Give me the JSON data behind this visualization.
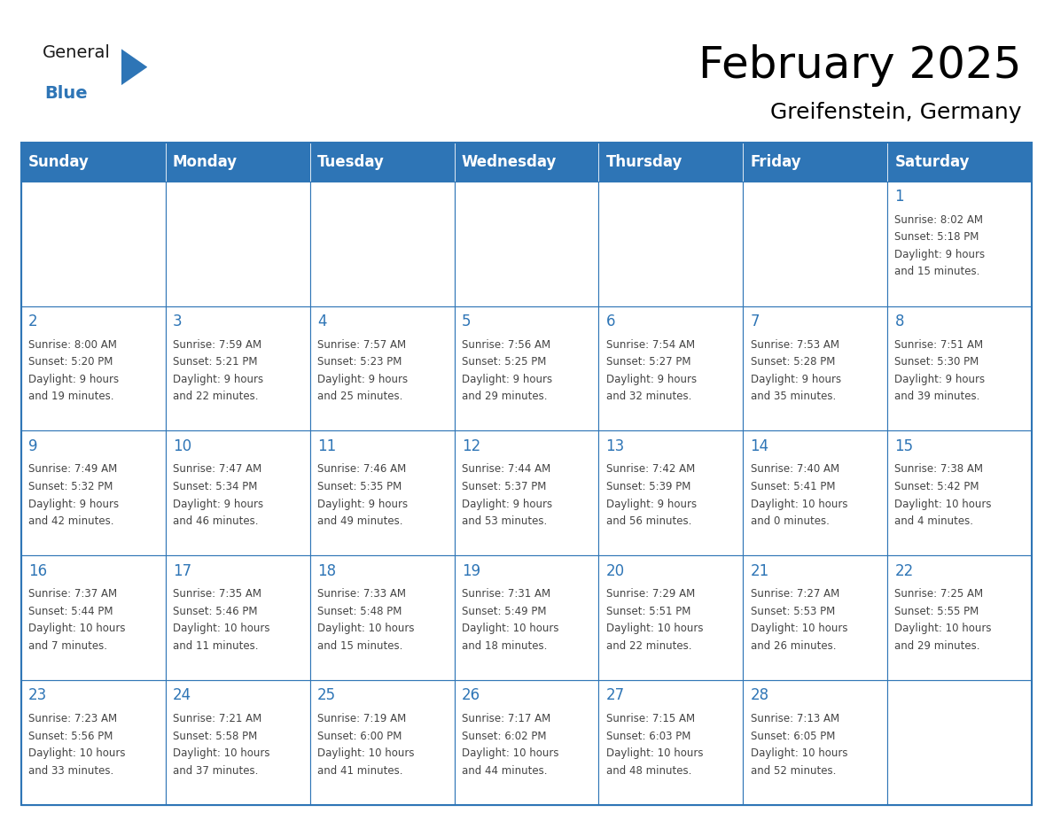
{
  "title": "February 2025",
  "subtitle": "Greifenstein, Germany",
  "header_color": "#2E75B6",
  "header_text_color": "#FFFFFF",
  "border_color": "#2E75B6",
  "text_color": "#444444",
  "day_number_color": "#2E75B6",
  "day_names": [
    "Sunday",
    "Monday",
    "Tuesday",
    "Wednesday",
    "Thursday",
    "Friday",
    "Saturday"
  ],
  "days_data": [
    {
      "day": 1,
      "col": 6,
      "row": 0,
      "sunrise": "8:02 AM",
      "sunset": "5:18 PM",
      "daylight_l1": "9 hours",
      "daylight_l2": "and 15 minutes."
    },
    {
      "day": 2,
      "col": 0,
      "row": 1,
      "sunrise": "8:00 AM",
      "sunset": "5:20 PM",
      "daylight_l1": "9 hours",
      "daylight_l2": "and 19 minutes."
    },
    {
      "day": 3,
      "col": 1,
      "row": 1,
      "sunrise": "7:59 AM",
      "sunset": "5:21 PM",
      "daylight_l1": "9 hours",
      "daylight_l2": "and 22 minutes."
    },
    {
      "day": 4,
      "col": 2,
      "row": 1,
      "sunrise": "7:57 AM",
      "sunset": "5:23 PM",
      "daylight_l1": "9 hours",
      "daylight_l2": "and 25 minutes."
    },
    {
      "day": 5,
      "col": 3,
      "row": 1,
      "sunrise": "7:56 AM",
      "sunset": "5:25 PM",
      "daylight_l1": "9 hours",
      "daylight_l2": "and 29 minutes."
    },
    {
      "day": 6,
      "col": 4,
      "row": 1,
      "sunrise": "7:54 AM",
      "sunset": "5:27 PM",
      "daylight_l1": "9 hours",
      "daylight_l2": "and 32 minutes."
    },
    {
      "day": 7,
      "col": 5,
      "row": 1,
      "sunrise": "7:53 AM",
      "sunset": "5:28 PM",
      "daylight_l1": "9 hours",
      "daylight_l2": "and 35 minutes."
    },
    {
      "day": 8,
      "col": 6,
      "row": 1,
      "sunrise": "7:51 AM",
      "sunset": "5:30 PM",
      "daylight_l1": "9 hours",
      "daylight_l2": "and 39 minutes."
    },
    {
      "day": 9,
      "col": 0,
      "row": 2,
      "sunrise": "7:49 AM",
      "sunset": "5:32 PM",
      "daylight_l1": "9 hours",
      "daylight_l2": "and 42 minutes."
    },
    {
      "day": 10,
      "col": 1,
      "row": 2,
      "sunrise": "7:47 AM",
      "sunset": "5:34 PM",
      "daylight_l1": "9 hours",
      "daylight_l2": "and 46 minutes."
    },
    {
      "day": 11,
      "col": 2,
      "row": 2,
      "sunrise": "7:46 AM",
      "sunset": "5:35 PM",
      "daylight_l1": "9 hours",
      "daylight_l2": "and 49 minutes."
    },
    {
      "day": 12,
      "col": 3,
      "row": 2,
      "sunrise": "7:44 AM",
      "sunset": "5:37 PM",
      "daylight_l1": "9 hours",
      "daylight_l2": "and 53 minutes."
    },
    {
      "day": 13,
      "col": 4,
      "row": 2,
      "sunrise": "7:42 AM",
      "sunset": "5:39 PM",
      "daylight_l1": "9 hours",
      "daylight_l2": "and 56 minutes."
    },
    {
      "day": 14,
      "col": 5,
      "row": 2,
      "sunrise": "7:40 AM",
      "sunset": "5:41 PM",
      "daylight_l1": "10 hours",
      "daylight_l2": "and 0 minutes."
    },
    {
      "day": 15,
      "col": 6,
      "row": 2,
      "sunrise": "7:38 AM",
      "sunset": "5:42 PM",
      "daylight_l1": "10 hours",
      "daylight_l2": "and 4 minutes."
    },
    {
      "day": 16,
      "col": 0,
      "row": 3,
      "sunrise": "7:37 AM",
      "sunset": "5:44 PM",
      "daylight_l1": "10 hours",
      "daylight_l2": "and 7 minutes."
    },
    {
      "day": 17,
      "col": 1,
      "row": 3,
      "sunrise": "7:35 AM",
      "sunset": "5:46 PM",
      "daylight_l1": "10 hours",
      "daylight_l2": "and 11 minutes."
    },
    {
      "day": 18,
      "col": 2,
      "row": 3,
      "sunrise": "7:33 AM",
      "sunset": "5:48 PM",
      "daylight_l1": "10 hours",
      "daylight_l2": "and 15 minutes."
    },
    {
      "day": 19,
      "col": 3,
      "row": 3,
      "sunrise": "7:31 AM",
      "sunset": "5:49 PM",
      "daylight_l1": "10 hours",
      "daylight_l2": "and 18 minutes."
    },
    {
      "day": 20,
      "col": 4,
      "row": 3,
      "sunrise": "7:29 AM",
      "sunset": "5:51 PM",
      "daylight_l1": "10 hours",
      "daylight_l2": "and 22 minutes."
    },
    {
      "day": 21,
      "col": 5,
      "row": 3,
      "sunrise": "7:27 AM",
      "sunset": "5:53 PM",
      "daylight_l1": "10 hours",
      "daylight_l2": "and 26 minutes."
    },
    {
      "day": 22,
      "col": 6,
      "row": 3,
      "sunrise": "7:25 AM",
      "sunset": "5:55 PM",
      "daylight_l1": "10 hours",
      "daylight_l2": "and 29 minutes."
    },
    {
      "day": 23,
      "col": 0,
      "row": 4,
      "sunrise": "7:23 AM",
      "sunset": "5:56 PM",
      "daylight_l1": "10 hours",
      "daylight_l2": "and 33 minutes."
    },
    {
      "day": 24,
      "col": 1,
      "row": 4,
      "sunrise": "7:21 AM",
      "sunset": "5:58 PM",
      "daylight_l1": "10 hours",
      "daylight_l2": "and 37 minutes."
    },
    {
      "day": 25,
      "col": 2,
      "row": 4,
      "sunrise": "7:19 AM",
      "sunset": "6:00 PM",
      "daylight_l1": "10 hours",
      "daylight_l2": "and 41 minutes."
    },
    {
      "day": 26,
      "col": 3,
      "row": 4,
      "sunrise": "7:17 AM",
      "sunset": "6:02 PM",
      "daylight_l1": "10 hours",
      "daylight_l2": "and 44 minutes."
    },
    {
      "day": 27,
      "col": 4,
      "row": 4,
      "sunrise": "7:15 AM",
      "sunset": "6:03 PM",
      "daylight_l1": "10 hours",
      "daylight_l2": "and 48 minutes."
    },
    {
      "day": 28,
      "col": 5,
      "row": 4,
      "sunrise": "7:13 AM",
      "sunset": "6:05 PM",
      "daylight_l1": "10 hours",
      "daylight_l2": "and 52 minutes."
    }
  ],
  "num_rows": 5,
  "num_cols": 7,
  "logo_general_color": "#1a1a1a",
  "logo_blue_color": "#2E75B6",
  "title_fontsize": 36,
  "subtitle_fontsize": 18,
  "header_fontsize": 12,
  "day_num_fontsize": 12,
  "cell_text_fontsize": 8.5
}
